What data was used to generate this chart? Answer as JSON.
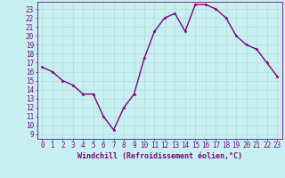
{
  "x": [
    0,
    1,
    2,
    3,
    4,
    5,
    6,
    7,
    8,
    9,
    10,
    11,
    12,
    13,
    14,
    15,
    16,
    17,
    18,
    19,
    20,
    21,
    22,
    23
  ],
  "y": [
    16.5,
    16.0,
    15.0,
    14.5,
    13.5,
    13.5,
    11.0,
    9.5,
    12.0,
    13.5,
    17.5,
    20.5,
    22.0,
    22.5,
    20.5,
    23.5,
    23.5,
    23.0,
    22.0,
    20.0,
    19.0,
    18.5,
    17.0,
    15.5
  ],
  "line_color": "#800080",
  "marker_color": "#800080",
  "bg_color": "#c8f0f0",
  "grid_color": "#b0dede",
  "axis_color": "#800080",
  "xlabel": "Windchill (Refroidissement éolien,°C)",
  "xlim": [
    -0.5,
    23.5
  ],
  "ylim": [
    8.5,
    23.8
  ],
  "yticks": [
    9,
    10,
    11,
    12,
    13,
    14,
    15,
    16,
    17,
    18,
    19,
    20,
    21,
    22,
    23
  ],
  "xticks": [
    0,
    1,
    2,
    3,
    4,
    5,
    6,
    7,
    8,
    9,
    10,
    11,
    12,
    13,
    14,
    15,
    16,
    17,
    18,
    19,
    20,
    21,
    22,
    23
  ],
  "font_color": "#800080",
  "line_width": 1.0,
  "marker_size": 2.5,
  "tick_fontsize": 5.5,
  "xlabel_fontsize": 6.0
}
